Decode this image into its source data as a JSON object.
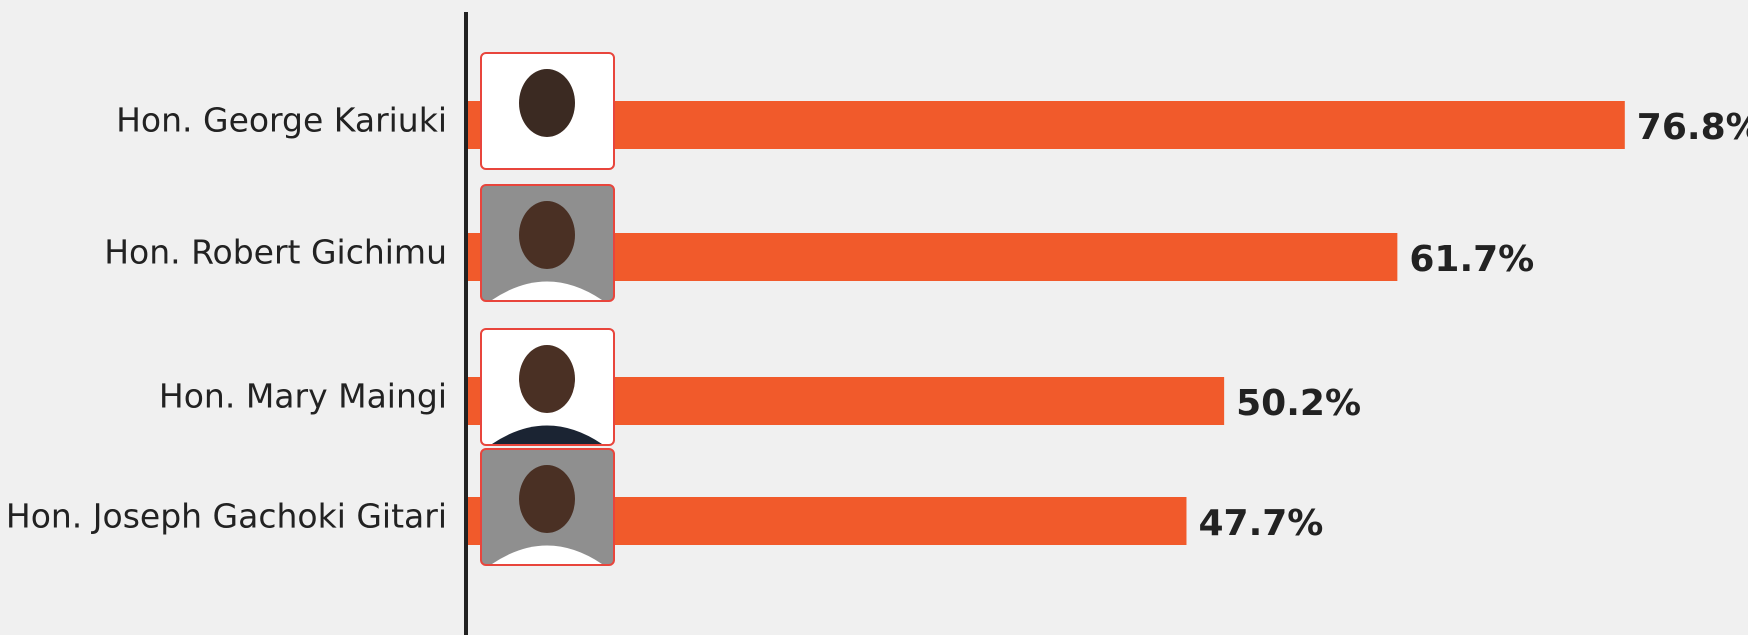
{
  "chart_data": {
    "type": "bar",
    "orientation": "horizontal",
    "categories": [
      "Hon. George Kariuki",
      "Hon. Robert Gichimu",
      "Hon. Mary Maingi",
      "Hon. Joseph Gachoki Gitari"
    ],
    "values": [
      76.8,
      61.7,
      50.2,
      47.7
    ],
    "value_labels": [
      "76.8%",
      "61.7%",
      "50.2%",
      "47.7%"
    ],
    "color": "#f15a2b",
    "xlim": [
      0,
      80
    ]
  }
}
